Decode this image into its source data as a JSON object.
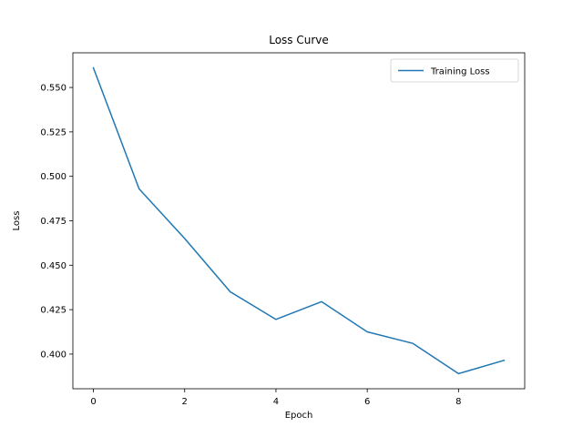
{
  "chart_data": {
    "type": "line",
    "title": "Loss Curve",
    "xlabel": "Epoch",
    "ylabel": "Loss",
    "xlim": [
      -0.45,
      9.45
    ],
    "ylim": [
      0.3805,
      0.5695
    ],
    "xticks": [
      0,
      2,
      4,
      6,
      8
    ],
    "xtick_labels": [
      "0",
      "2",
      "4",
      "6",
      "8"
    ],
    "yticks": [
      0.4,
      0.425,
      0.45,
      0.475,
      0.5,
      0.525,
      0.55
    ],
    "ytick_labels": [
      "0.400",
      "0.425",
      "0.450",
      "0.475",
      "0.500",
      "0.525",
      "0.550"
    ],
    "grid": false,
    "legend_position": "top-right",
    "series": [
      {
        "name": "Training Loss",
        "color": "#1f77b4",
        "x": [
          0,
          1,
          2,
          3,
          4,
          5,
          6,
          7,
          8,
          9
        ],
        "y": [
          0.561,
          0.493,
          0.465,
          0.435,
          0.4195,
          0.4295,
          0.4125,
          0.406,
          0.389,
          0.3965
        ]
      }
    ]
  }
}
